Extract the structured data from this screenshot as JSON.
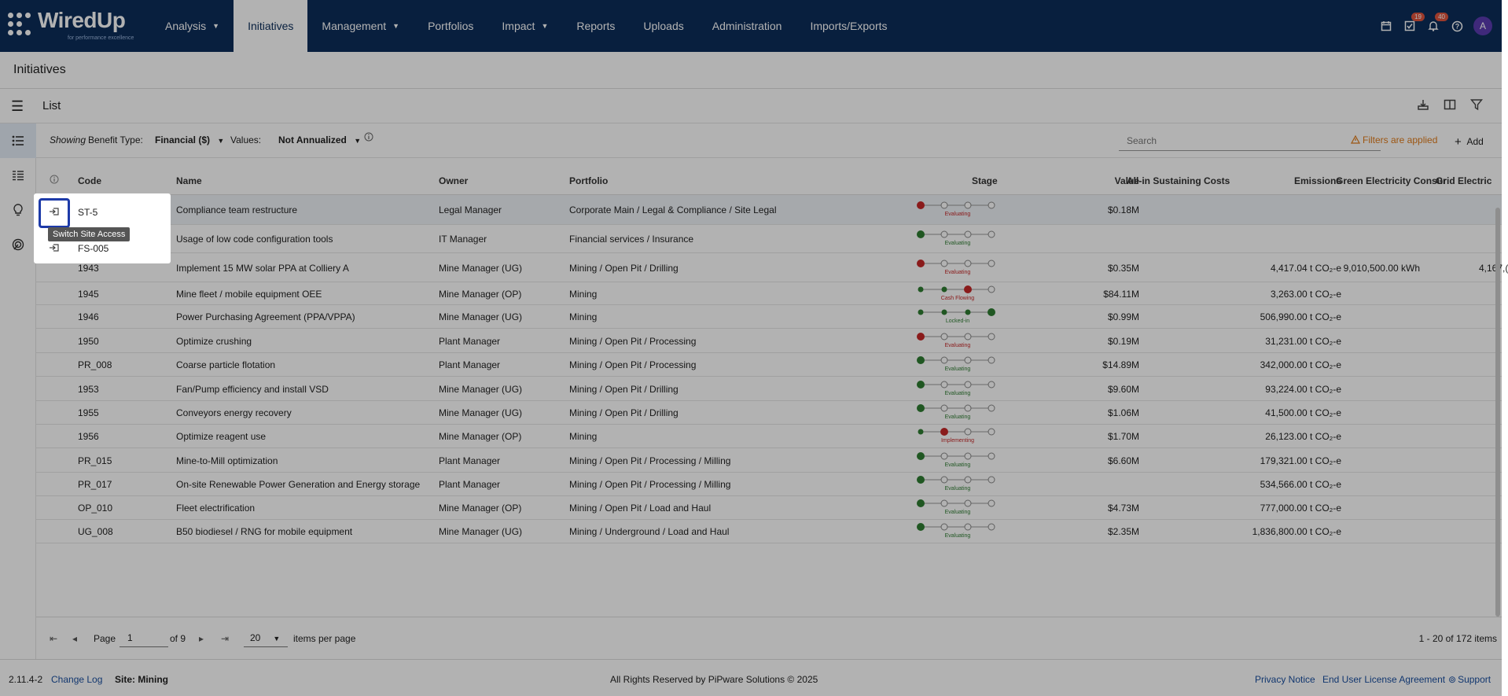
{
  "nav": {
    "logo_text": "WiredUp",
    "logo_tagline": "for performance excellence",
    "items": [
      {
        "label": "Analysis",
        "dropdown": true
      },
      {
        "label": "Initiatives",
        "dropdown": false,
        "active": true
      },
      {
        "label": "Management",
        "dropdown": true
      },
      {
        "label": "Portfolios",
        "dropdown": false
      },
      {
        "label": "Impact",
        "dropdown": true
      },
      {
        "label": "Reports",
        "dropdown": false
      },
      {
        "label": "Uploads",
        "dropdown": false
      },
      {
        "label": "Administration",
        "dropdown": false
      },
      {
        "label": "Imports/Exports",
        "dropdown": false
      }
    ],
    "tasks_badge": "19",
    "notifications_badge": "40",
    "avatar_initial": "A"
  },
  "page_title": "Initiatives",
  "list_label": "List",
  "filters": {
    "showing": "Showing",
    "benefit_type_label": "Benefit Type:",
    "benefit_type_value": "Financial ($)",
    "values_label": "Values:",
    "values_value": "Not Annualized",
    "search_placeholder": "Search",
    "filters_applied": "Filters are applied",
    "add_label": "Add"
  },
  "columns": {
    "code": "Code",
    "name": "Name",
    "owner": "Owner",
    "portfolio": "Portfolio",
    "stage": "Stage",
    "value": "Value",
    "sustaining": "All-in Sustaining Costs",
    "emissions": "Emissions",
    "green": "Green Electricity Consur",
    "grid": "Grid Electric"
  },
  "rows": [
    {
      "code": "ST-5",
      "name": "Compliance team restructure",
      "owner": "Legal Manager",
      "portfolio": "Corporate Main / Legal & Compliance / Site Legal",
      "stage": "Evaluating",
      "stage_index": 0,
      "stage_color": "red",
      "value": "$0.18M",
      "emissions": "",
      "green": "",
      "grid": "",
      "switch_icon": true
    },
    {
      "code": "FS-005",
      "name": "Usage of low code configuration tools",
      "owner": "IT Manager",
      "portfolio": "Financial services / Insurance",
      "stage": "Evaluating",
      "stage_index": 0,
      "stage_color": "green",
      "value": "",
      "emissions": "",
      "green": "",
      "grid": "",
      "switch_icon": true
    },
    {
      "code": "1943",
      "name": "Implement 15 MW solar PPA at Colliery A",
      "owner": "Mine Manager (UG)",
      "portfolio": "Mining / Open Pit / Drilling",
      "stage": "Evaluating",
      "stage_index": 0,
      "stage_color": "red",
      "value": "$0.35M",
      "emissions": "4,417.04 t CO₂-e",
      "green": "9,010,500.00 kWh",
      "grid": "4,167,("
    },
    {
      "code": "1945",
      "name": "Mine fleet / mobile equipment OEE",
      "owner": "Mine Manager (OP)",
      "portfolio": "Mining",
      "stage": "Cash Flowing",
      "stage_index": 2,
      "stage_color": "red",
      "value": "$84.11M",
      "emissions": "3,263.00 t CO₂-e",
      "green": "",
      "grid": ""
    },
    {
      "code": "1946",
      "name": "Power Purchasing Agreement (PPA/VPPA)",
      "owner": "Mine Manager (UG)",
      "portfolio": "Mining",
      "stage": "Locked-in",
      "stage_index": 3,
      "stage_color": "green",
      "value": "$0.99M",
      "emissions": "506,990.00 t CO₂-e",
      "green": "",
      "grid": ""
    },
    {
      "code": "1950",
      "name": "Optimize crushing",
      "owner": "Plant Manager",
      "portfolio": "Mining / Open Pit / Processing",
      "stage": "Evaluating",
      "stage_index": 0,
      "stage_color": "red",
      "value": "$0.19M",
      "emissions": "31,231.00 t CO₂-e",
      "green": "",
      "grid": ""
    },
    {
      "code": "PR_008",
      "name": "Coarse particle flotation",
      "owner": "Plant Manager",
      "portfolio": "Mining / Open Pit / Processing",
      "stage": "Evaluating",
      "stage_index": 0,
      "stage_color": "green",
      "value": "$14.89M",
      "emissions": "342,000.00 t CO₂-e",
      "green": "",
      "grid": ""
    },
    {
      "code": "1953",
      "name": "Fan/Pump efficiency and install VSD",
      "owner": "Mine Manager (UG)",
      "portfolio": "Mining / Open Pit / Drilling",
      "stage": "Evaluating",
      "stage_index": 0,
      "stage_color": "green",
      "value": "$9.60M",
      "emissions": "93,224.00 t CO₂-e",
      "green": "",
      "grid": ""
    },
    {
      "code": "1955",
      "name": "Conveyors energy recovery",
      "owner": "Mine Manager (UG)",
      "portfolio": "Mining / Open Pit / Drilling",
      "stage": "Evaluating",
      "stage_index": 0,
      "stage_color": "green",
      "value": "$1.06M",
      "emissions": "41,500.00 t CO₂-e",
      "green": "",
      "grid": ""
    },
    {
      "code": "1956",
      "name": "Optimize reagent use",
      "owner": "Mine Manager (OP)",
      "portfolio": "Mining",
      "stage": "Implementing",
      "stage_index": 1,
      "stage_color": "red",
      "value": "$1.70M",
      "emissions": "26,123.00 t CO₂-e",
      "green": "",
      "grid": ""
    },
    {
      "code": "PR_015",
      "name": "Mine-to-Mill optimization",
      "owner": "Plant Manager",
      "portfolio": "Mining / Open Pit / Processing / Milling",
      "stage": "Evaluating",
      "stage_index": 0,
      "stage_color": "green",
      "value": "$6.60M",
      "emissions": "179,321.00 t CO₂-e",
      "green": "",
      "grid": ""
    },
    {
      "code": "PR_017",
      "name": "On-site Renewable Power Generation and Energy storage",
      "owner": "Plant Manager",
      "portfolio": "Mining / Open Pit / Processing / Milling",
      "stage": "Evaluating",
      "stage_index": 0,
      "stage_color": "green",
      "value": "",
      "emissions": "534,566.00 t CO₂-e",
      "green": "",
      "grid": ""
    },
    {
      "code": "OP_010",
      "name": "Fleet electrification",
      "owner": "Mine Manager (OP)",
      "portfolio": "Mining / Open Pit / Load and Haul",
      "stage": "Evaluating",
      "stage_index": 0,
      "stage_color": "green",
      "value": "$4.73M",
      "emissions": "777,000.00 t CO₂-e",
      "green": "",
      "grid": ""
    },
    {
      "code": "UG_008",
      "name": "B50 biodiesel / RNG for mobile equipment",
      "owner": "Mine Manager (UG)",
      "portfolio": "Mining / Underground / Load and Haul",
      "stage": "Evaluating",
      "stage_index": 0,
      "stage_color": "green",
      "value": "$2.35M",
      "emissions": "1,836,800.00 t CO₂-e",
      "green": "",
      "grid": ""
    }
  ],
  "tooltip": "Switch Site Access",
  "pager": {
    "page_label": "Page",
    "page_value": "1",
    "of_label": "of 9",
    "per_page_value": "20",
    "per_page_label": "items per page",
    "range": "1 - 20 of 172 items"
  },
  "footer": {
    "version": "2.11.4-2",
    "changelog": "Change Log",
    "site": "Site: Mining",
    "copyright": "All Rights Reserved by PiPware Solutions © 2025",
    "privacy": "Privacy Notice",
    "eula": "End User License Agreement",
    "support": "Support"
  },
  "colors": {
    "nav_bg": "#0c2d5a",
    "stage_red": "#c62828",
    "stage_green": "#2e7d32",
    "warning": "#e07b1a",
    "link": "#1a4fa0"
  }
}
